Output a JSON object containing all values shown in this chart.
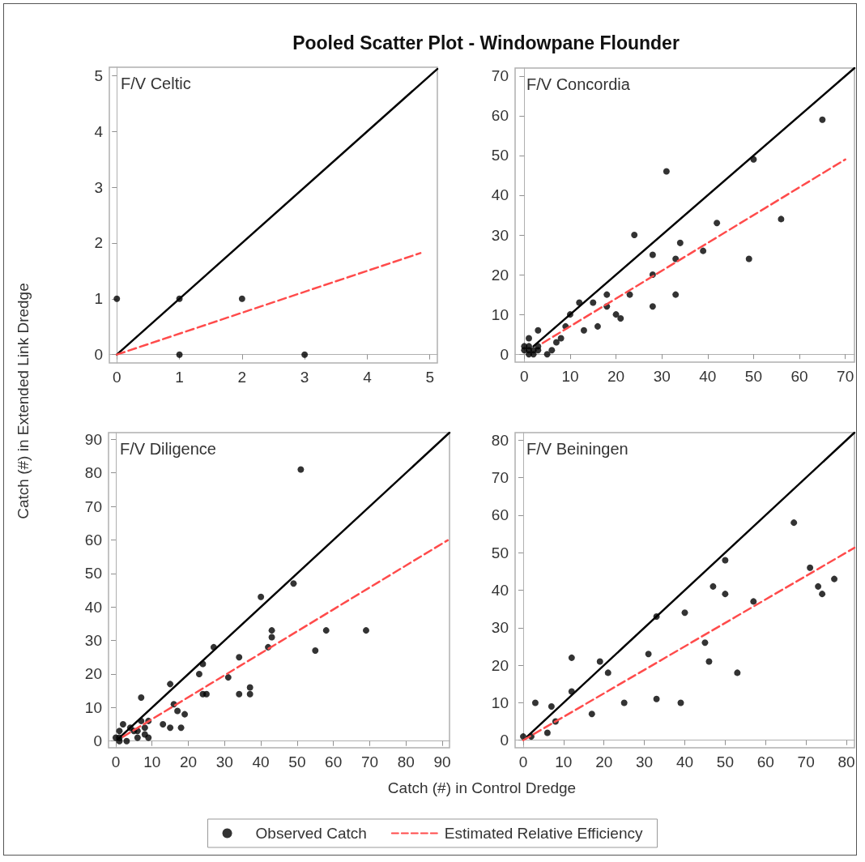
{
  "chart_data": [
    {
      "type": "scatter",
      "title": "Pooled Scatter Plot - Windowpane Flounder",
      "subtitle": "F/V Celtic",
      "xlabel": "Catch (#) in Control Dredge",
      "ylabel": "Catch (#) in Extended Link Dredge",
      "legend": "bottom",
      "xlim": [
        -0.12,
        5.12
      ],
      "ylim": [
        -0.15,
        5.15
      ],
      "xticks": [
        0,
        1,
        2,
        3,
        4,
        5
      ],
      "yticks": [
        0,
        1,
        2,
        3,
        4,
        5
      ],
      "series": [
        {
          "name": "Observed Catch",
          "marker": "circle",
          "color": "#000000",
          "x": [
            0,
            1,
            1,
            2,
            3
          ],
          "values": [
            1,
            1,
            0,
            1,
            0
          ]
        },
        {
          "type": "line",
          "color": "#000000",
          "line_style": "solid",
          "x": [
            0,
            5.12
          ],
          "values": [
            0,
            5.12
          ]
        },
        {
          "name": "Estimated Relative Efficiency",
          "type": "line",
          "color": "#ff4b4b",
          "line_style": "dashed",
          "x": [
            0,
            4.85
          ],
          "values": [
            0,
            1.82
          ]
        }
      ]
    },
    {
      "type": "scatter",
      "subtitle": "F/V Concordia",
      "xlim": [
        -2,
        72
      ],
      "ylim": [
        -2,
        72
      ],
      "xticks": [
        0,
        10,
        20,
        30,
        40,
        50,
        60,
        70
      ],
      "yticks": [
        0,
        10,
        20,
        30,
        40,
        50,
        60,
        70
      ],
      "series": [
        {
          "marker": "circle",
          "color": "#000000",
          "x": [
            65,
            50,
            31,
            56,
            42,
            24,
            34,
            39,
            28,
            33,
            49,
            28,
            18,
            23,
            33,
            12,
            15,
            18,
            28,
            20,
            21,
            10,
            9,
            13,
            16,
            3,
            1,
            8,
            7,
            6,
            5,
            3,
            0,
            1,
            2,
            0,
            1,
            2,
            1,
            3
          ],
          "values": [
            59,
            49,
            46,
            34,
            33,
            30,
            28,
            26,
            25,
            24,
            24,
            20,
            15,
            15,
            15,
            13,
            13,
            12,
            12,
            10,
            9,
            10,
            7,
            6,
            7,
            6,
            4,
            4,
            3,
            1,
            0,
            1,
            1,
            0,
            0,
            2,
            1,
            1,
            2,
            2
          ]
        },
        {
          "type": "line",
          "color": "#000000",
          "line_style": "solid",
          "x": [
            2,
            72
          ],
          "values": [
            2,
            72
          ]
        },
        {
          "type": "line",
          "color": "#ff4b4b",
          "line_style": "dashed",
          "x": [
            4,
            70
          ],
          "values": [
            2.8,
            49
          ]
        }
      ]
    },
    {
      "type": "scatter",
      "subtitle": "F/V Diligence",
      "xlim": [
        -2,
        92
      ],
      "ylim": [
        -2,
        92
      ],
      "xticks": [
        0,
        10,
        20,
        30,
        40,
        50,
        60,
        70,
        80,
        90
      ],
      "yticks": [
        0,
        10,
        20,
        30,
        40,
        50,
        60,
        70,
        80,
        90
      ],
      "series": [
        {
          "marker": "circle",
          "color": "#000000",
          "x": [
            51,
            49,
            40,
            43,
            58,
            69,
            43,
            42,
            27,
            55,
            34,
            24,
            23,
            31,
            15,
            37,
            37,
            34,
            24,
            25,
            7,
            16,
            17,
            19,
            13,
            15,
            18,
            9,
            7,
            8,
            9,
            8,
            2,
            4,
            5,
            6,
            6,
            1,
            0,
            1,
            1,
            3
          ],
          "values": [
            81,
            47,
            43,
            33,
            33,
            33,
            31,
            28,
            28,
            27,
            25,
            23,
            20,
            19,
            17,
            16,
            14,
            14,
            14,
            14,
            13,
            11,
            9,
            8,
            5,
            4,
            4,
            6,
            6,
            4,
            1,
            2,
            5,
            4,
            3,
            3,
            1,
            3,
            1,
            0,
            1,
            0
          ]
        },
        {
          "type": "line",
          "color": "#000000",
          "line_style": "solid",
          "x": [
            1,
            92
          ],
          "values": [
            1,
            92
          ]
        },
        {
          "type": "line",
          "color": "#ff4b4b",
          "line_style": "dashed",
          "x": [
            2,
            91.5
          ],
          "values": [
            1.3,
            59.9
          ]
        }
      ]
    },
    {
      "type": "scatter",
      "subtitle": "F/V Beiningen",
      "xlim": [
        -2,
        82
      ],
      "ylim": [
        -2,
        82
      ],
      "xticks": [
        0,
        10,
        20,
        30,
        40,
        50,
        60,
        70,
        80
      ],
      "yticks": [
        0,
        10,
        20,
        30,
        40,
        50,
        60,
        70,
        80
      ],
      "series": [
        {
          "marker": "circle",
          "color": "#000000",
          "x": [
            0,
            2,
            3,
            6,
            7,
            8,
            12,
            12,
            17,
            19,
            21,
            25,
            31,
            33,
            33,
            39,
            40,
            45,
            46,
            47,
            50,
            50,
            53,
            57,
            67,
            71,
            73,
            74,
            77
          ],
          "values": [
            1,
            1,
            10,
            2,
            9,
            5,
            22,
            13,
            7,
            21,
            18,
            10,
            23,
            33,
            11,
            10,
            34,
            26,
            21,
            41,
            48,
            39,
            18,
            37,
            58,
            46,
            41,
            39,
            43
          ]
        },
        {
          "type": "line",
          "color": "#000000",
          "line_style": "solid",
          "x": [
            1,
            82
          ],
          "values": [
            1,
            82
          ]
        },
        {
          "type": "line",
          "color": "#ff4b4b",
          "line_style": "dashed",
          "x": [
            0,
            82
          ],
          "values": [
            0,
            51.3
          ]
        }
      ]
    }
  ]
}
